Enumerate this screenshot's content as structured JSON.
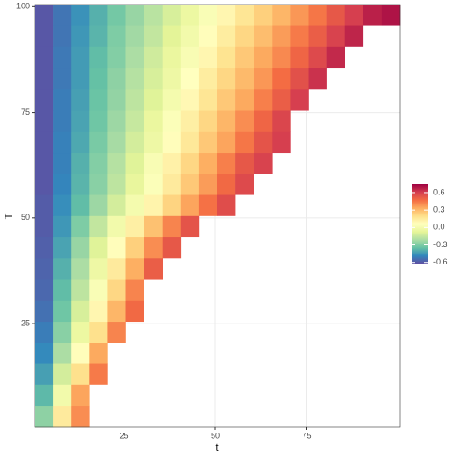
{
  "chart_data": {
    "type": "heatmap",
    "x_label": "t",
    "y_label": "T",
    "x": [
      3,
      8,
      13,
      18,
      23,
      28,
      33,
      38,
      43,
      48,
      53,
      58,
      63,
      68,
      73,
      78,
      83,
      88,
      93,
      98
    ],
    "y": [
      3,
      8,
      13,
      18,
      23,
      28,
      33,
      38,
      43,
      48,
      53,
      58,
      63,
      68,
      73,
      78,
      83,
      88,
      93,
      98
    ],
    "tile_width": 5,
    "tile_height": 5,
    "z": [
      [
        -0.27,
        0.15,
        0.4,
        null,
        null,
        null,
        null,
        null,
        null,
        null,
        null,
        null,
        null,
        null,
        null,
        null,
        null,
        null,
        null,
        null
      ],
      [
        -0.37,
        -0.01,
        0.35,
        null,
        null,
        null,
        null,
        null,
        null,
        null,
        null,
        null,
        null,
        null,
        null,
        null,
        null,
        null,
        null,
        null
      ],
      [
        -0.43,
        -0.12,
        0.19,
        0.44,
        null,
        null,
        null,
        null,
        null,
        null,
        null,
        null,
        null,
        null,
        null,
        null,
        null,
        null,
        null,
        null
      ],
      [
        -0.48,
        -0.21,
        0.07,
        0.34,
        null,
        null,
        null,
        null,
        null,
        null,
        null,
        null,
        null,
        null,
        null,
        null,
        null,
        null,
        null,
        null
      ],
      [
        -0.51,
        -0.28,
        -0.04,
        0.19,
        0.42,
        null,
        null,
        null,
        null,
        null,
        null,
        null,
        null,
        null,
        null,
        null,
        null,
        null,
        null,
        null
      ],
      [
        -0.54,
        -0.33,
        -0.11,
        0.1,
        0.31,
        0.48,
        null,
        null,
        null,
        null,
        null,
        null,
        null,
        null,
        null,
        null,
        null,
        null,
        null,
        null
      ],
      [
        -0.56,
        -0.36,
        -0.17,
        0.03,
        0.22,
        0.42,
        null,
        null,
        null,
        null,
        null,
        null,
        null,
        null,
        null,
        null,
        null,
        null,
        null,
        null
      ],
      [
        -0.57,
        -0.39,
        -0.21,
        -0.03,
        0.15,
        0.33,
        0.51,
        null,
        null,
        null,
        null,
        null,
        null,
        null,
        null,
        null,
        null,
        null,
        null,
        null
      ],
      [
        -0.58,
        -0.42,
        -0.25,
        -0.09,
        0.07,
        0.24,
        0.4,
        0.53,
        null,
        null,
        null,
        null,
        null,
        null,
        null,
        null,
        null,
        null,
        null,
        null
      ],
      [
        -0.59,
        -0.45,
        -0.3,
        -0.16,
        -0.01,
        0.13,
        0.28,
        0.42,
        0.54,
        null,
        null,
        null,
        null,
        null,
        null,
        null,
        null,
        null,
        null,
        null
      ],
      [
        -0.59,
        -0.47,
        -0.36,
        -0.24,
        -0.12,
        0,
        0.11,
        0.23,
        0.35,
        0.46,
        0.56,
        null,
        null,
        null,
        null,
        null,
        null,
        null,
        null,
        null
      ],
      [
        -0.6,
        -0.49,
        -0.38,
        -0.28,
        -0.17,
        -0.06,
        0.04,
        0.15,
        0.26,
        0.37,
        0.48,
        0.57,
        null,
        null,
        null,
        null,
        null,
        null,
        null,
        null
      ],
      [
        -0.6,
        -0.5,
        -0.39,
        -0.29,
        -0.19,
        -0.09,
        0.02,
        0.12,
        0.22,
        0.33,
        0.43,
        0.53,
        0.59,
        null,
        null,
        null,
        null,
        null,
        null,
        null
      ],
      [
        -0.6,
        -0.5,
        -0.41,
        -0.31,
        -0.22,
        -0.12,
        -0.03,
        0.07,
        0.16,
        0.26,
        0.35,
        0.45,
        0.54,
        0.6,
        null,
        null,
        null,
        null,
        null,
        null
      ],
      [
        -0.6,
        -0.51,
        -0.42,
        -0.33,
        -0.24,
        -0.15,
        -0.05,
        0.04,
        0.13,
        0.22,
        0.31,
        0.4,
        0.49,
        0.58,
        null,
        null,
        null,
        null,
        null,
        null
      ],
      [
        -0.6,
        -0.51,
        -0.43,
        -0.34,
        -0.26,
        -0.17,
        -0.09,
        0,
        0.09,
        0.17,
        0.26,
        0.34,
        0.43,
        0.51,
        0.6,
        null,
        null,
        null,
        null,
        null
      ],
      [
        -0.6,
        -0.52,
        -0.44,
        -0.35,
        -0.27,
        -0.19,
        -0.11,
        -0.03,
        0.06,
        0.14,
        0.22,
        0.3,
        0.38,
        0.47,
        0.55,
        0.63,
        null,
        null,
        null,
        null
      ],
      [
        -0.6,
        -0.52,
        -0.44,
        -0.36,
        -0.29,
        -0.21,
        -0.13,
        -0.05,
        0.02,
        0.1,
        0.18,
        0.26,
        0.34,
        0.41,
        0.49,
        0.57,
        0.65,
        null,
        null,
        null
      ],
      [
        -0.6,
        -0.53,
        -0.45,
        -0.38,
        -0.3,
        -0.23,
        -0.16,
        -0.08,
        -0.01,
        0.07,
        0.14,
        0.22,
        0.29,
        0.37,
        0.44,
        0.51,
        0.59,
        0.66,
        null,
        null
      ],
      [
        -0.6,
        -0.53,
        -0.46,
        -0.39,
        -0.32,
        -0.25,
        -0.18,
        -0.11,
        -0.04,
        0.03,
        0.1,
        0.17,
        0.24,
        0.31,
        0.38,
        0.45,
        0.53,
        0.6,
        0.67,
        0.7
      ]
    ],
    "xlim": [
      0.5,
      100.5
    ],
    "ylim": [
      0.5,
      100.5
    ],
    "xticks": [
      25,
      50,
      75
    ],
    "yticks": [
      25,
      50,
      75,
      100
    ],
    "grid": true,
    "colorbar": {
      "lim": [
        -0.62,
        0.74
      ],
      "ticks": [
        0.6,
        0.3,
        {
          "value": 0,
          "label": "0.0"
        },
        -0.3,
        -0.6
      ],
      "palette": [
        "#5E4FA2",
        "#3288BD",
        "#66C2A5",
        "#ABDDA4",
        "#E6F598",
        "#FFFFBF",
        "#FEE08B",
        "#FDAE61",
        "#F46D43",
        "#D53E4F",
        "#9E0142"
      ]
    },
    "legend_position": "right"
  }
}
